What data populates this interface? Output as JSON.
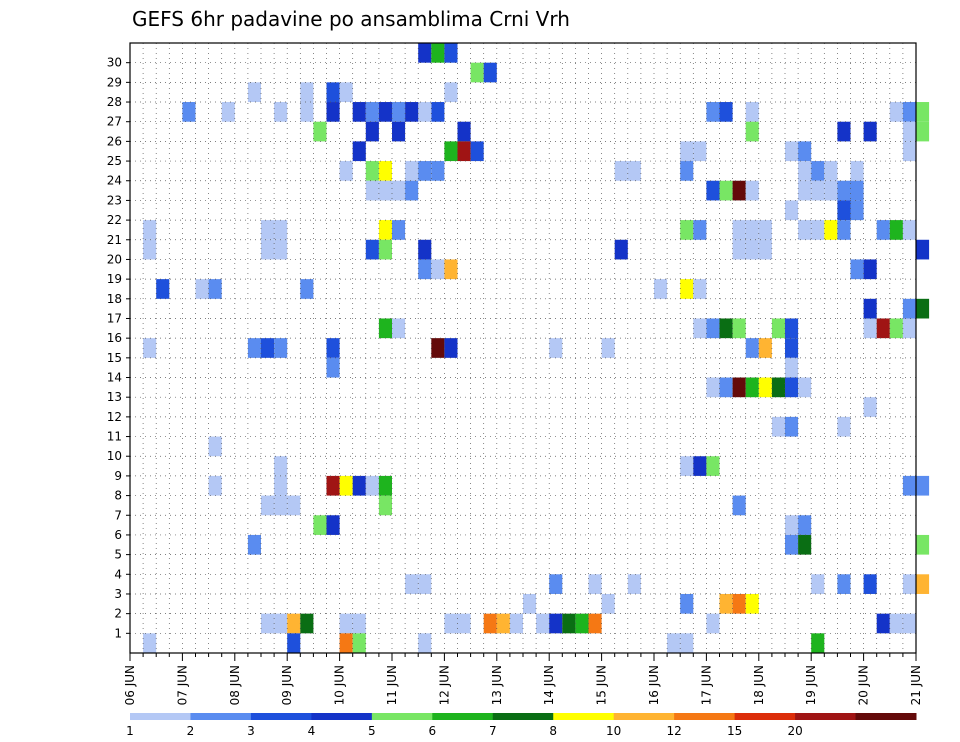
{
  "chart_data": {
    "type": "heatmap",
    "title": "GEFS 6hr padavine po ansamblima Crni Vrh",
    "xlabel": "",
    "ylabel": "",
    "x_range": [
      "06 JUN 00Z",
      "21 JUN 00Z"
    ],
    "steps_per_day": 4,
    "y_range": [
      0,
      30
    ],
    "x_tick_labels": [
      "06 JUN",
      "07 JUN",
      "08 JUN",
      "09 JUN",
      "10 JUN",
      "11 JUN",
      "12 JUN",
      "13 JUN",
      "14 JUN",
      "15 JUN",
      "16 JUN",
      "17 JUN",
      "18 JUN",
      "19 JUN",
      "20 JUN",
      "21 JUN"
    ],
    "y_tick_labels": [
      "1",
      "2",
      "3",
      "4",
      "5",
      "6",
      "7",
      "8",
      "9",
      "10",
      "11",
      "12",
      "13",
      "14",
      "15",
      "16",
      "17",
      "18",
      "19",
      "20",
      "21",
      "22",
      "23",
      "24",
      "25",
      "26",
      "27",
      "28",
      "29",
      "30"
    ],
    "grid": "dotted",
    "colorbar": {
      "labels": [
        "1",
        "2",
        "3",
        "4",
        "5",
        "6",
        "7",
        "8",
        "10",
        "12",
        "15",
        "20"
      ],
      "colors": [
        "#b4c8f5",
        "#5a8cf0",
        "#1e50dc",
        "#1433c8",
        "#78e664",
        "#1eb41e",
        "#0a6e14",
        "#ffff00",
        "#ffb432",
        "#f57814",
        "#dc2d0a",
        "#a01414",
        "#640a0a"
      ]
    },
    "cells": [
      [
        1,
        0,
        1
      ],
      [
        3,
        0,
        2
      ],
      [
        4,
        0,
        1
      ],
      [
        5,
        0,
        1
      ],
      [
        6,
        0,
        1
      ],
      [
        12,
        0,
        5
      ],
      [
        13,
        0,
        4
      ],
      [
        14,
        0,
        3
      ],
      [
        15,
        0,
        3
      ],
      [
        16,
        0,
        2
      ],
      [
        17,
        0,
        1
      ],
      [
        18,
        0,
        1
      ],
      [
        19,
        0,
        2
      ],
      [
        20,
        0,
        4
      ],
      [
        21,
        0,
        3
      ],
      [
        22,
        0,
        1
      ],
      [
        23,
        0,
        1
      ],
      [
        24,
        0,
        3
      ],
      [
        26,
        0,
        1
      ],
      [
        27,
        0,
        1
      ],
      [
        28,
        0,
        1
      ],
      [
        29,
        0,
        6
      ],
      [
        30,
        0,
        5
      ],
      [
        44,
        0,
        3
      ],
      [
        45,
        0,
        1
      ],
      [
        46,
        0,
        2
      ],
      [
        47,
        0,
        1
      ],
      [
        48,
        0,
        3
      ],
      [
        52,
        0,
        3
      ],
      [
        56,
        0,
        3
      ],
      [
        57,
        0,
        1
      ],
      [
        58,
        0,
        1
      ],
      [
        59,
        0,
        2
      ],
      [
        60,
        0,
        1
      ],
      [
        4,
        1,
        1
      ],
      [
        5,
        1,
        1
      ],
      [
        6,
        1,
        1
      ],
      [
        8,
        1,
        2
      ],
      [
        9,
        1,
        3
      ],
      [
        10,
        1,
        2
      ],
      [
        11,
        1,
        1
      ],
      [
        15,
        1,
        1
      ],
      [
        16,
        1,
        2
      ],
      [
        17,
        1,
        3
      ],
      [
        18,
        1,
        4
      ],
      [
        22,
        1,
        1
      ],
      [
        23,
        1,
        1
      ],
      [
        25,
        1,
        1
      ],
      [
        28,
        1,
        1
      ],
      [
        29,
        1,
        1
      ],
      [
        30,
        1,
        2
      ],
      [
        31,
        1,
        2
      ],
      [
        32,
        1,
        1
      ],
      [
        11,
        2,
        1
      ],
      [
        12,
        2,
        1
      ],
      [
        13,
        2,
        1
      ],
      [
        14,
        2,
        1
      ],
      [
        15,
        2,
        2
      ],
      [
        18,
        2,
        5
      ],
      [
        19,
        2,
        3
      ],
      [
        24,
        2,
        2
      ],
      [
        27,
        2,
        2
      ],
      [
        29,
        2,
        3
      ],
      [
        34,
        2,
        1
      ],
      [
        35,
        2,
        1
      ],
      [
        37,
        2,
        2
      ],
      [
        39,
        2,
        1
      ],
      [
        40,
        2,
        1
      ],
      [
        42,
        2,
        1
      ],
      [
        43,
        2,
        1
      ],
      [
        12,
        3,
        1
      ],
      [
        14,
        3,
        1
      ],
      [
        15,
        3,
        2
      ],
      [
        24,
        3,
        1
      ],
      [
        25,
        3,
        1
      ],
      [
        28,
        3,
        1
      ],
      [
        29,
        3,
        1
      ],
      [
        30,
        3,
        1
      ],
      [
        32,
        3,
        1
      ],
      [
        33,
        3,
        3
      ],
      [
        35,
        3,
        2
      ],
      [
        36,
        3,
        2
      ],
      [
        37,
        3,
        1
      ],
      [
        38,
        3,
        1
      ],
      [
        40,
        3,
        1
      ],
      [
        41,
        3,
        1
      ],
      [
        42,
        3,
        1
      ],
      [
        43,
        3,
        2
      ],
      [
        44,
        3,
        1
      ],
      [
        45,
        3,
        1
      ],
      [
        46,
        3,
        1
      ],
      [
        10,
        4,
        1
      ],
      [
        11,
        4,
        1
      ],
      [
        12,
        4,
        1
      ],
      [
        13,
        4,
        2
      ],
      [
        14,
        4,
        1
      ],
      [
        15,
        4,
        1
      ],
      [
        16,
        4,
        1
      ],
      [
        17,
        4,
        3
      ],
      [
        18,
        4,
        3
      ],
      [
        19,
        4,
        1
      ],
      [
        20,
        4,
        1
      ],
      [
        23,
        4,
        1
      ],
      [
        24,
        4,
        1
      ],
      [
        25,
        4,
        1
      ],
      [
        26,
        4,
        1
      ],
      [
        27,
        4,
        1
      ],
      [
        28,
        4,
        2
      ],
      [
        29,
        4,
        2
      ],
      [
        30,
        4,
        1
      ],
      [
        31,
        4,
        1
      ],
      [
        32,
        4,
        1
      ],
      [
        33,
        4,
        2
      ],
      [
        34,
        4,
        1
      ],
      [
        35,
        4,
        1
      ],
      [
        36,
        4,
        1
      ],
      [
        13,
        5,
        1
      ],
      [
        14,
        5,
        1
      ],
      [
        15,
        5,
        2
      ],
      [
        18,
        5,
        1
      ],
      [
        19,
        5,
        1
      ],
      [
        20,
        5,
        2
      ],
      [
        21,
        5,
        1
      ],
      [
        22,
        5,
        1
      ],
      [
        23,
        5,
        2
      ],
      [
        24,
        5,
        1
      ],
      [
        25,
        5,
        1
      ],
      [
        26,
        5,
        2
      ],
      [
        27,
        5,
        1
      ],
      [
        28,
        5,
        1
      ],
      [
        29,
        5,
        1
      ],
      [
        30,
        5,
        1
      ],
      [
        31,
        5,
        1
      ],
      [
        32,
        5,
        1
      ],
      [
        33,
        5,
        1
      ],
      [
        34,
        5,
        1
      ],
      [
        35,
        5,
        1
      ],
      [
        36,
        5,
        1
      ],
      [
        37,
        5,
        1
      ],
      [
        38,
        5,
        1
      ],
      [
        39,
        5,
        2
      ],
      [
        40,
        5,
        1
      ],
      [
        41,
        5,
        1
      ]
    ],
    "ensemble_cells": [
      [
        10,
        1,
        1
      ],
      [
        11,
        1,
        1
      ],
      [
        12,
        1,
        8
      ],
      [
        13,
        1,
        6
      ],
      [
        14,
        1,
        5
      ],
      [
        16,
        1,
        1
      ],
      [
        20,
        1,
        1
      ],
      [
        22,
        1,
        1
      ],
      [
        24,
        1,
        1
      ],
      [
        25,
        1,
        1
      ],
      [
        26,
        1,
        1
      ],
      [
        28,
        1,
        1
      ],
      [
        29,
        1,
        1
      ],
      [
        30,
        1,
        1
      ],
      [
        31,
        1,
        1
      ],
      [
        32,
        1,
        1
      ],
      [
        33,
        1,
        1
      ],
      [
        34,
        1,
        1
      ],
      [
        36,
        1,
        1
      ],
      [
        37,
        1,
        1
      ],
      [
        38,
        1,
        1
      ],
      [
        39,
        1,
        1
      ],
      [
        40,
        1,
        1
      ],
      [
        41,
        1,
        1
      ],
      [
        42,
        1,
        1
      ],
      [
        43,
        1,
        1
      ],
      [
        44,
        1,
        1
      ],
      [
        45,
        1,
        1
      ],
      [
        46,
        1,
        1
      ],
      [
        47,
        1,
        1
      ],
      [
        48,
        1,
        1
      ],
      [
        49,
        1,
        1
      ],
      [
        50,
        1,
        1
      ],
      [
        51,
        1,
        1
      ],
      [
        52,
        1,
        1
      ],
      [
        53,
        1,
        1
      ]
    ]
  }
}
